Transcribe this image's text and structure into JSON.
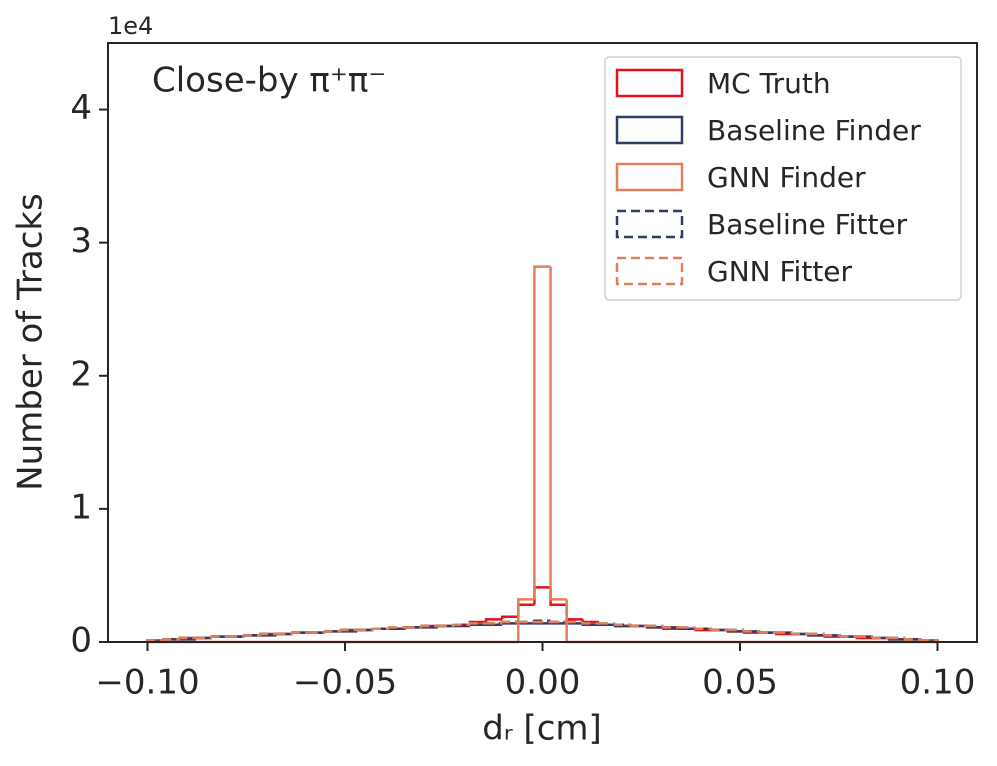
{
  "chart_data": {
    "type": "histogram",
    "annotation": "Close-by π⁺π⁻",
    "x_label": "dᵣ [cm]",
    "y_label": "Number of Tracks",
    "y_offset_label": "1e4",
    "xlim": [
      -0.11,
      0.11
    ],
    "ylim": [
      0,
      4.5
    ],
    "xticks": [
      {
        "value": -0.1,
        "label": "−0.10"
      },
      {
        "value": -0.05,
        "label": "−0.05"
      },
      {
        "value": 0,
        "label": "0.00"
      },
      {
        "value": 0.05,
        "label": "0.05"
      },
      {
        "value": 0.1,
        "label": "0.10"
      }
    ],
    "yticks": [
      0,
      1,
      2,
      3,
      4
    ],
    "legend": "upper right",
    "bins": [
      -0.1,
      -0.09592,
      -0.09184,
      -0.08776,
      -0.08367,
      -0.07959,
      -0.07551,
      -0.07143,
      -0.06735,
      -0.06327,
      -0.05918,
      -0.0551,
      -0.05102,
      -0.04694,
      -0.04286,
      -0.03878,
      -0.03469,
      -0.03061,
      -0.02653,
      -0.02245,
      -0.01837,
      -0.01429,
      -0.0102,
      -0.00612,
      -0.00204,
      0.00204,
      0.00612,
      0.0102,
      0.01429,
      0.01837,
      0.02245,
      0.02653,
      0.03061,
      0.03469,
      0.03878,
      0.04286,
      0.04694,
      0.05102,
      0.0551,
      0.05918,
      0.06327,
      0.06735,
      0.07143,
      0.07551,
      0.07959,
      0.08367,
      0.08776,
      0.09184,
      0.09592,
      0.1
    ],
    "series": [
      {
        "name": "MC Truth",
        "color": "#e8101a",
        "linestyle": "solid",
        "values": [
          0.01,
          0.02,
          0.03,
          0.03,
          0.04,
          0.04,
          0.05,
          0.06,
          0.06,
          0.07,
          0.07,
          0.08,
          0.09,
          0.09,
          0.1,
          0.1,
          0.11,
          0.12,
          0.12,
          0.13,
          0.15,
          0.17,
          0.19,
          0.28,
          0.41,
          0.28,
          0.17,
          0.15,
          0.13,
          0.12,
          0.12,
          0.11,
          0.1,
          0.1,
          0.09,
          0.09,
          0.08,
          0.07,
          0.07,
          0.06,
          0.06,
          0.05,
          0.04,
          0.04,
          0.03,
          0.03,
          0.02,
          0.02,
          0.01
        ]
      },
      {
        "name": "Baseline Finder",
        "color": "#2e3d62",
        "linestyle": "solid",
        "values": [
          0.01,
          0.02,
          0.02,
          0.03,
          0.04,
          0.04,
          0.05,
          0.05,
          0.06,
          0.07,
          0.07,
          0.08,
          0.08,
          0.09,
          0.1,
          0.1,
          0.11,
          0.11,
          0.12,
          0.12,
          0.13,
          0.13,
          0.14,
          0.14,
          0.14,
          0.14,
          0.14,
          0.13,
          0.13,
          0.12,
          0.12,
          0.11,
          0.11,
          0.1,
          0.1,
          0.09,
          0.08,
          0.08,
          0.07,
          0.07,
          0.06,
          0.05,
          0.05,
          0.04,
          0.04,
          0.03,
          0.02,
          0.02,
          0.01
        ]
      },
      {
        "name": "GNN Finder",
        "color": "#e0805a",
        "linestyle": "solid",
        "values": [
          0,
          0,
          0,
          0,
          0,
          0,
          0,
          0,
          0,
          0,
          0,
          0,
          0,
          0,
          0,
          0,
          0,
          0,
          0,
          0,
          0,
          0,
          0,
          0.32,
          2.82,
          0.32,
          0,
          0,
          0,
          0,
          0,
          0,
          0,
          0,
          0,
          0,
          0,
          0,
          0,
          0,
          0,
          0,
          0,
          0,
          0,
          0,
          0,
          0,
          0
        ]
      },
      {
        "name": "Baseline Fitter",
        "color": "#2e3d62",
        "linestyle": "dashed",
        "values": [
          0.01,
          0.02,
          0.03,
          0.03,
          0.04,
          0.04,
          0.05,
          0.06,
          0.06,
          0.07,
          0.07,
          0.08,
          0.09,
          0.09,
          0.1,
          0.1,
          0.11,
          0.12,
          0.12,
          0.13,
          0.13,
          0.14,
          0.15,
          0.15,
          0.16,
          0.15,
          0.15,
          0.14,
          0.13,
          0.13,
          0.12,
          0.12,
          0.11,
          0.1,
          0.1,
          0.09,
          0.09,
          0.08,
          0.07,
          0.07,
          0.06,
          0.06,
          0.05,
          0.04,
          0.04,
          0.03,
          0.03,
          0.02,
          0.01
        ]
      },
      {
        "name": "GNN Fitter",
        "color": "#e0805a",
        "linestyle": "dashed",
        "values": [
          0.01,
          0.02,
          0.03,
          0.03,
          0.04,
          0.04,
          0.05,
          0.06,
          0.06,
          0.07,
          0.07,
          0.08,
          0.09,
          0.09,
          0.1,
          0.11,
          0.11,
          0.12,
          0.12,
          0.13,
          0.14,
          0.14,
          0.15,
          0.15,
          0.15,
          0.15,
          0.15,
          0.14,
          0.14,
          0.13,
          0.12,
          0.12,
          0.11,
          0.11,
          0.1,
          0.09,
          0.09,
          0.08,
          0.07,
          0.07,
          0.06,
          0.06,
          0.05,
          0.04,
          0.04,
          0.03,
          0.03,
          0.02,
          0.01
        ]
      }
    ]
  }
}
